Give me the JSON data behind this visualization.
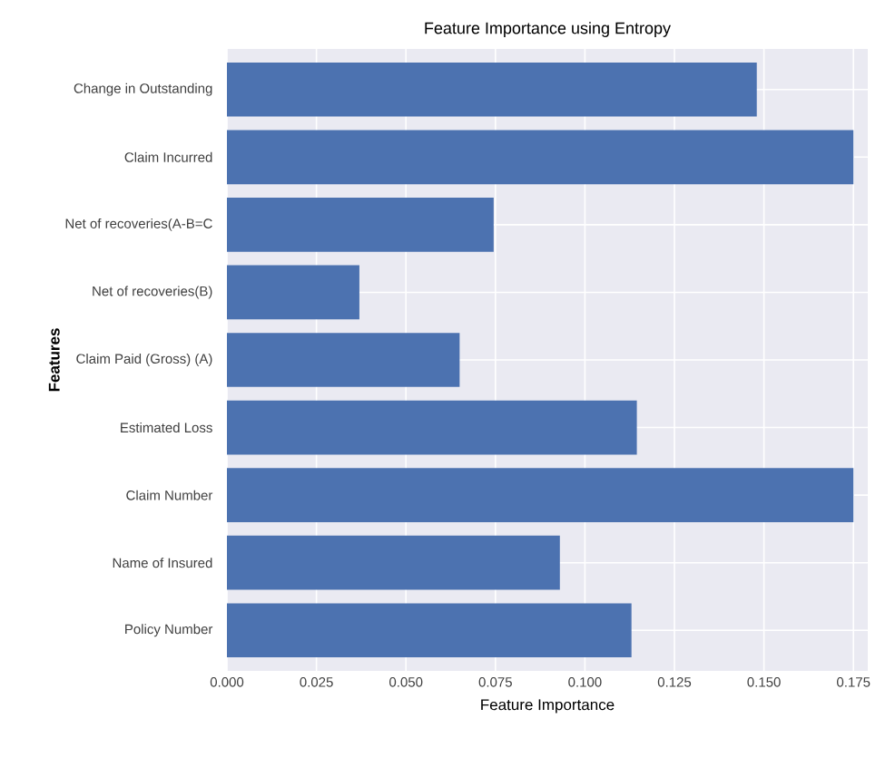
{
  "chart_data": {
    "type": "bar",
    "orientation": "horizontal",
    "title": "Feature Importance using  Entropy",
    "xlabel": "Feature Importance",
    "ylabel": "Features",
    "categories": [
      "Change in Outstanding",
      "Claim Incurred",
      "Net of recoveries(A-B=C",
      "Net of recoveries(B)",
      "Claim Paid (Gross) (A)",
      "Estimated Loss",
      "Claim Number",
      "Name of Insured",
      "Policy Number"
    ],
    "values": [
      0.148,
      0.175,
      0.0745,
      0.037,
      0.065,
      0.1145,
      0.175,
      0.093,
      0.113
    ],
    "color": "#4c72b0",
    "xlim": [
      0,
      0.179
    ],
    "xticks": [
      {
        "value": 0,
        "label": "0.000"
      },
      0.025,
      {
        "value": 0.05,
        "label": "0.050"
      },
      0.075,
      {
        "value": 0.1,
        "label": "0.100"
      },
      0.125,
      {
        "value": 0.15,
        "label": "0.150"
      },
      0.175
    ],
    "grid": true
  }
}
